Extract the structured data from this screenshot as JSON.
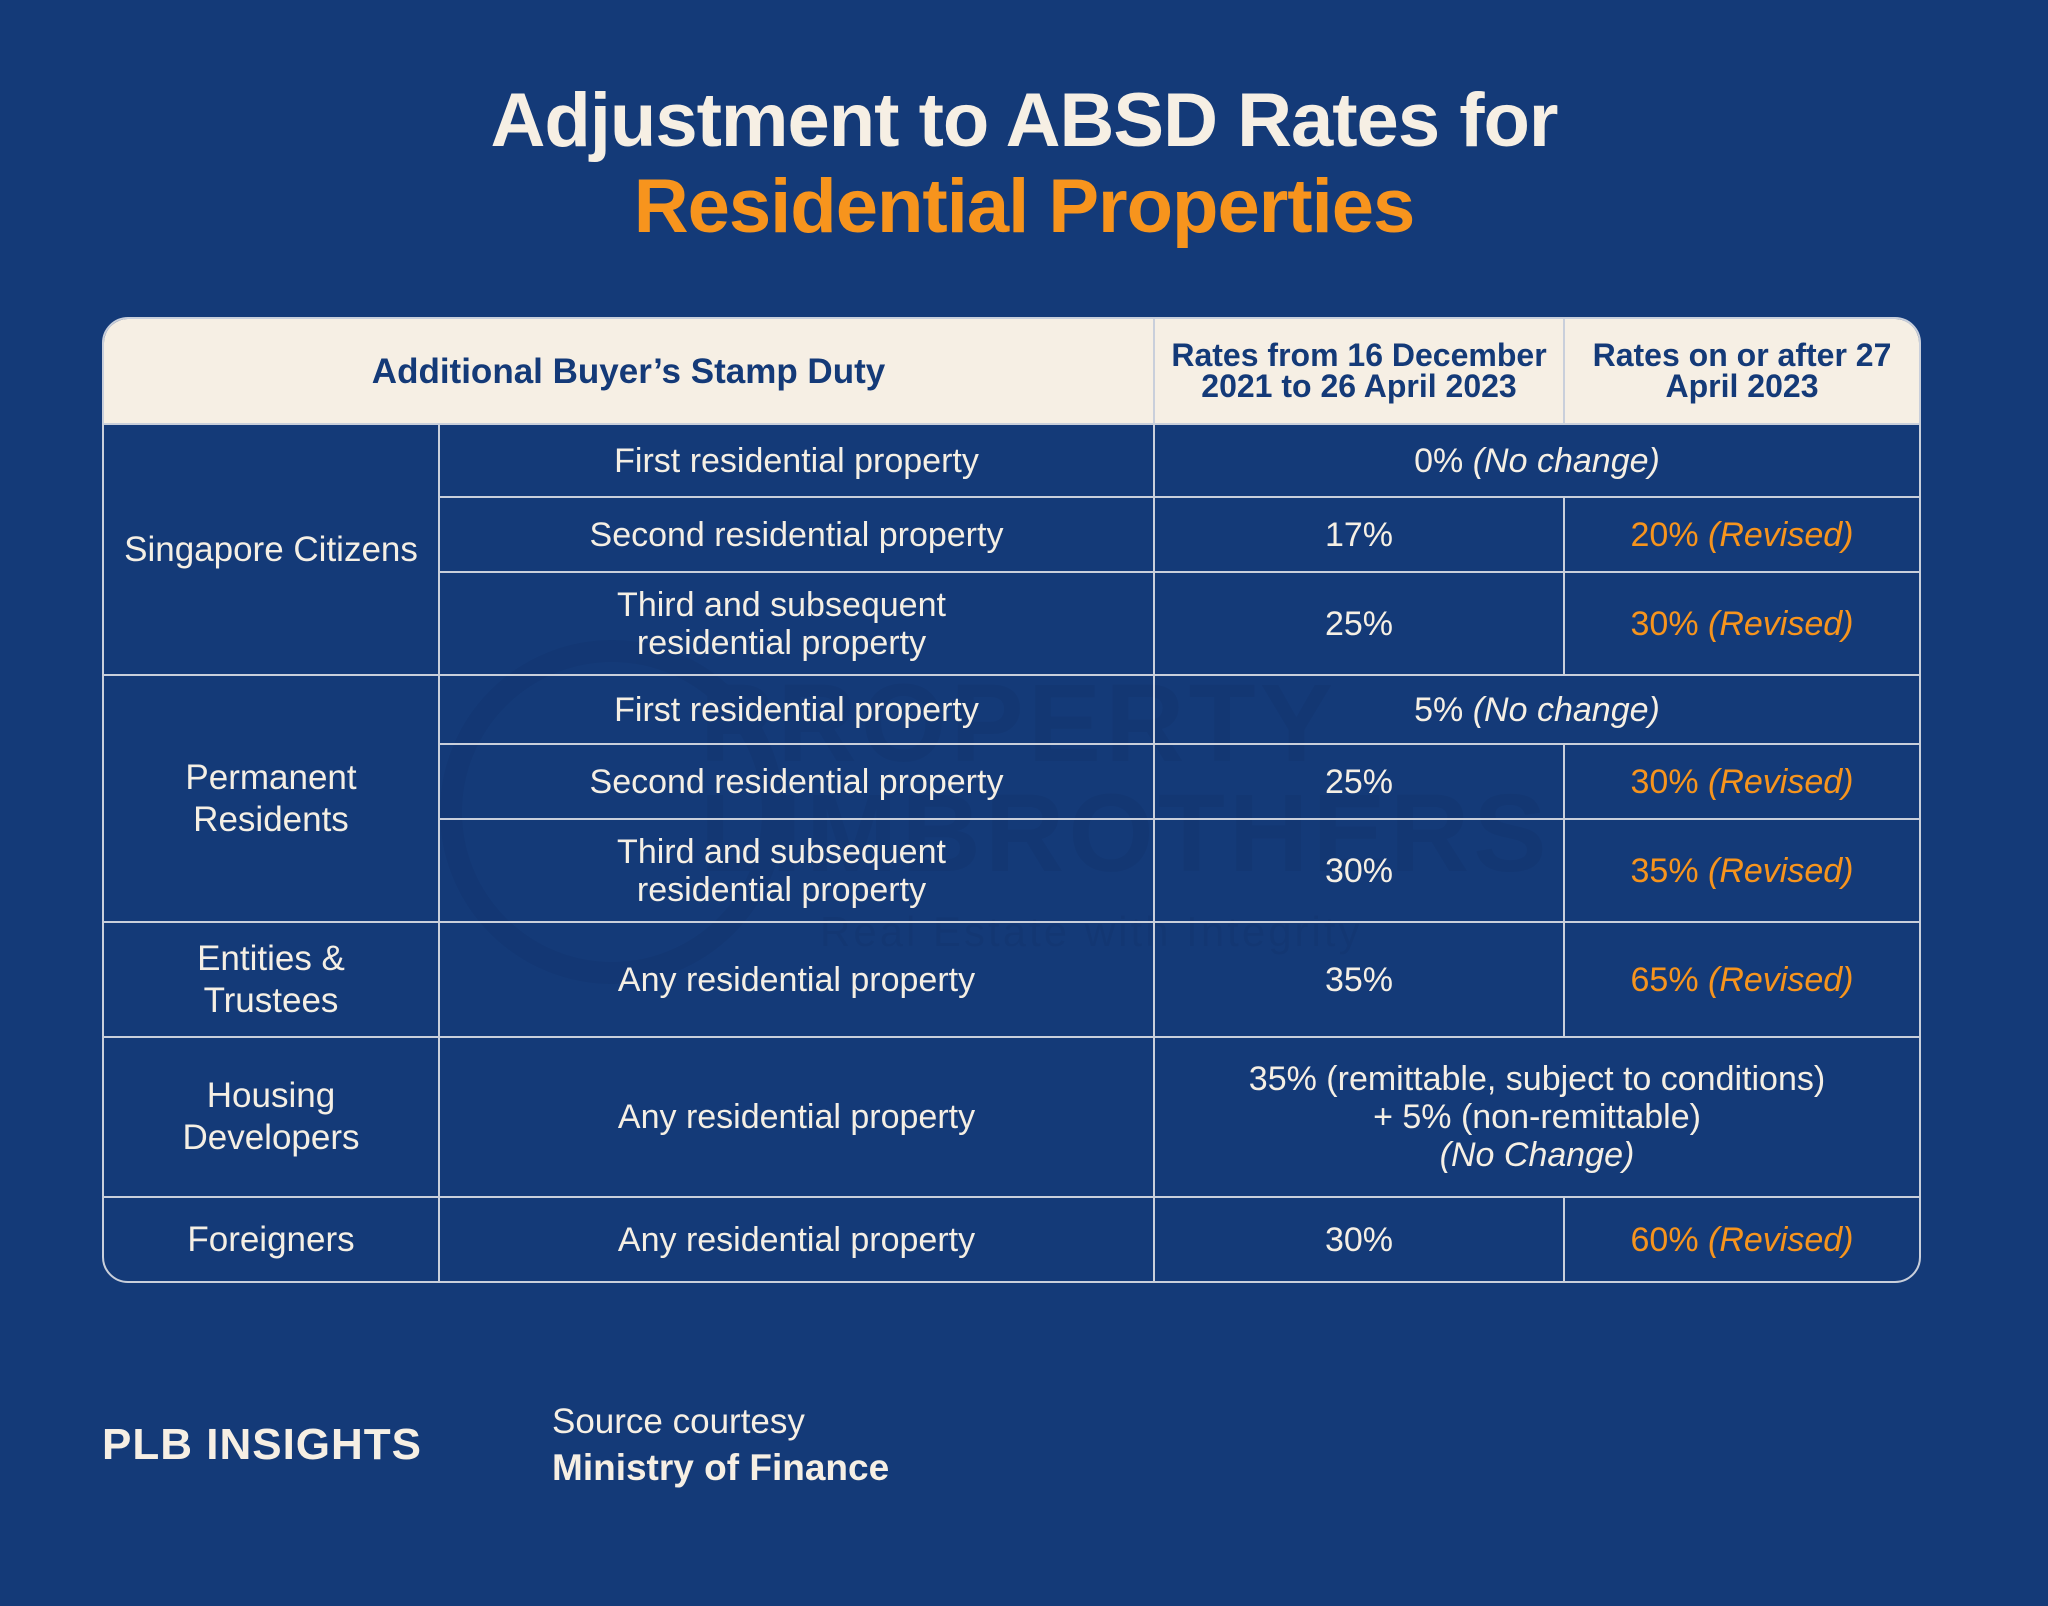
{
  "title": {
    "line1": "Adjustment to ABSD Rates for",
    "line2": "Residential Properties"
  },
  "colors": {
    "background": "#143a78",
    "header": "#f6efe4",
    "accent": "#f7941d"
  },
  "table": {
    "headers": [
      "Additional Buyer’s Stamp Duty",
      "Rates from 16 December 2021 to 26 April 2023",
      "Rates on or after 27 April 2023"
    ],
    "groups": {
      "sc": {
        "label": "Singapore Citizens",
        "rows": [
          {
            "property": "First residential property",
            "combined": "0%",
            "combined_note": "(No change)"
          },
          {
            "property": "Second residential property",
            "old": "17%",
            "new": "20%",
            "new_note": "(Revised)"
          },
          {
            "property": "Third and subsequent residential property",
            "old": "25%",
            "new": "30%",
            "new_note": "(Revised)"
          }
        ]
      },
      "pr": {
        "label": "Permanent Residents",
        "rows": [
          {
            "property": "First residential property",
            "combined": "5%",
            "combined_note": "(No change)"
          },
          {
            "property": "Second residential property",
            "old": "25%",
            "new": "30%",
            "new_note": "(Revised)"
          },
          {
            "property": "Third and subsequent residential property",
            "old": "30%",
            "new": "35%",
            "new_note": "(Revised)"
          }
        ]
      },
      "et": {
        "label": "Entities & Trustees",
        "rows": [
          {
            "property": "Any residential property",
            "old": "35%",
            "new": "65%",
            "new_note": "(Revised)"
          }
        ]
      },
      "hd": {
        "label": "Housing Developers",
        "rows": [
          {
            "property": "Any residential property",
            "combined": "35% (remittable, subject to conditions) + 5% (non-remittable)",
            "combined_note": "(No Change)"
          }
        ]
      },
      "fo": {
        "label": "Foreigners",
        "rows": [
          {
            "property": "Any residential property",
            "old": "30%",
            "new": "60%",
            "new_note": "(Revised)"
          }
        ]
      }
    }
  },
  "watermark": {
    "line1": "PROPERTY",
    "line2": "LIMBROTHERS",
    "tagline": "Real Estate with Integrity"
  },
  "footer": {
    "logo": "PLB INSIGHTS",
    "source_label": "Source courtesy",
    "source_name": "Ministry of Finance"
  }
}
